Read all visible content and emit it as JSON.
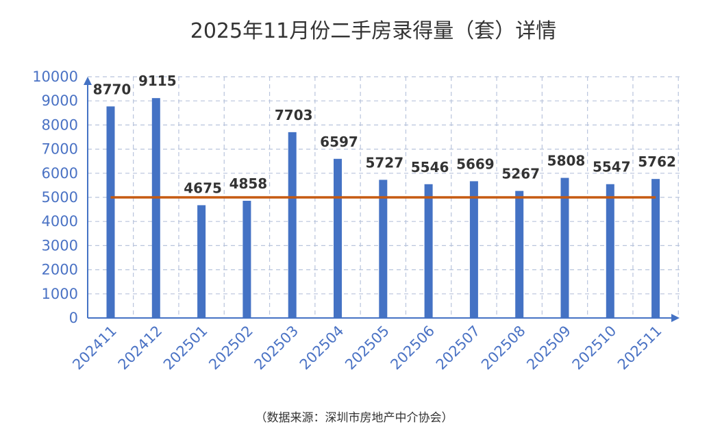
{
  "chart_data": {
    "type": "bar",
    "title": "2025年11月份二手房录得量（套）详情",
    "source": "（数据来源：深圳市房地产中介协会）",
    "categories": [
      "202411",
      "202412",
      "202501",
      "202502",
      "202503",
      "202504",
      "202505",
      "202506",
      "202507",
      "202508",
      "202509",
      "202510",
      "202511"
    ],
    "values": [
      8770,
      9115,
      4675,
      4858,
      7703,
      6597,
      5727,
      5546,
      5669,
      5267,
      5808,
      5547,
      5762
    ],
    "ylim": [
      0,
      10000
    ],
    "yticks": [
      0,
      1000,
      2000,
      3000,
      4000,
      5000,
      6000,
      7000,
      8000,
      9000,
      10000
    ],
    "reference_line": 5000,
    "grid": true,
    "colors": {
      "bar": "#4472c4",
      "reference_line": "#c55a11",
      "axis": "#4472c4",
      "tick_text": "#4a72c4",
      "grid": "#b8c4dc"
    }
  }
}
